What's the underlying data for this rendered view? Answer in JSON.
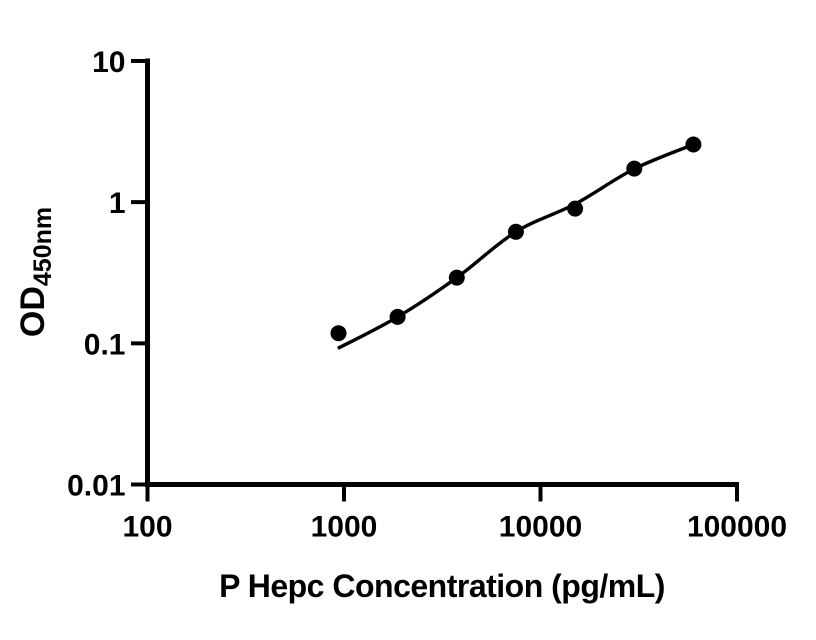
{
  "chart_data": {
    "type": "scatter",
    "title": "",
    "xlabel": "P Hepc Concentration (pg/mL)",
    "ylabel": "OD450nm",
    "ylabel_main": "OD",
    "ylabel_sub": "450nm",
    "x_scale": "log",
    "y_scale": "log",
    "xlim": [
      100,
      100000
    ],
    "ylim": [
      0.01,
      10
    ],
    "x_ticks": [
      100,
      1000,
      10000,
      100000
    ],
    "x_tick_labels": [
      "100",
      "1000",
      "10000",
      "100000"
    ],
    "y_ticks": [
      10,
      1,
      0.1,
      0.01
    ],
    "y_tick_labels": [
      "10",
      "1",
      "0.1",
      "0.01"
    ],
    "grid": "off",
    "legend": "none",
    "marker_color": "#000000",
    "line_color": "#000000",
    "series": [
      {
        "name": "standard-curve-points",
        "marker": "filled-circle",
        "points": [
          [
            937.5,
            0.118
          ],
          [
            1875,
            0.154
          ],
          [
            3750,
            0.292
          ],
          [
            7500,
            0.617
          ],
          [
            15000,
            0.9
          ],
          [
            30000,
            1.73
          ],
          [
            60000,
            2.56
          ]
        ]
      }
    ],
    "fit_line": [
      [
        930,
        0.092
      ],
      [
        1875,
        0.154
      ],
      [
        3750,
        0.292
      ],
      [
        7500,
        0.617
      ],
      [
        15000,
        0.97
      ],
      [
        30000,
        1.72
      ],
      [
        60000,
        2.56
      ]
    ]
  }
}
